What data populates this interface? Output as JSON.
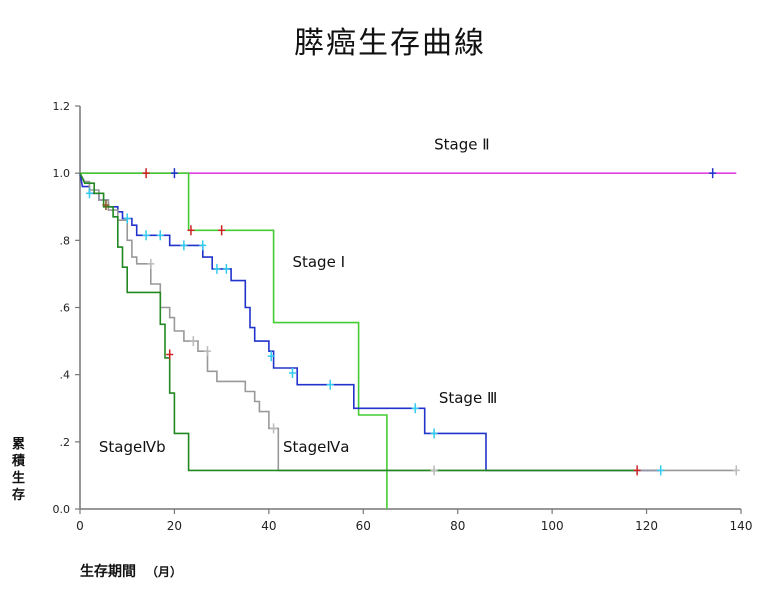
{
  "chart_data": {
    "type": "line",
    "title": "膵癌生存曲線",
    "xlabel": "生存期間",
    "xlabel_unit": "（月）",
    "ylabel": "累積生存",
    "xlim": [
      0,
      140
    ],
    "ylim": [
      0.0,
      1.2
    ],
    "x_ticks": [
      0,
      20,
      40,
      60,
      80,
      100,
      120,
      140
    ],
    "y_ticks": [
      {
        "value": 0.0,
        "label": "0.0"
      },
      {
        "value": 0.2,
        "label": ".2"
      },
      {
        "value": 0.4,
        "label": ".4"
      },
      {
        "value": 0.6,
        "label": ".6"
      },
      {
        "value": 0.8,
        "label": ".8"
      },
      {
        "value": 1.0,
        "label": "1.0"
      },
      {
        "value": 1.2,
        "label": "1.2"
      }
    ],
    "grid": false,
    "series": [
      {
        "name": "Stage Ⅱ",
        "color": "#e040e0",
        "steps": [
          [
            0,
            1.0
          ],
          [
            139,
            1.0
          ]
        ],
        "censored": [
          {
            "x": 134,
            "y": 1.0,
            "color": "#2233cc"
          }
        ]
      },
      {
        "name": "Stage Ⅰ",
        "color": "#44cc33",
        "steps": [
          [
            0,
            1.0
          ],
          [
            23,
            1.0
          ],
          [
            23,
            0.83
          ],
          [
            41,
            0.83
          ],
          [
            41,
            0.555
          ],
          [
            59,
            0.555
          ],
          [
            59,
            0.28
          ],
          [
            65,
            0.28
          ],
          [
            65,
            0.0
          ]
        ],
        "censored": [
          {
            "x": 14,
            "y": 1.0,
            "color": "#cc2222"
          },
          {
            "x": 20,
            "y": 1.0,
            "color": "#2233cc"
          },
          {
            "x": 23.5,
            "y": 0.83,
            "color": "#cc2222"
          },
          {
            "x": 30,
            "y": 0.83,
            "color": "#cc2222"
          }
        ]
      },
      {
        "name": "Stage Ⅲ",
        "color": "#2233cc",
        "steps": [
          [
            0,
            1.0
          ],
          [
            0.5,
            0.96
          ],
          [
            2,
            0.96
          ],
          [
            2,
            0.94
          ],
          [
            4,
            0.94
          ],
          [
            4,
            0.92
          ],
          [
            6,
            0.92
          ],
          [
            6,
            0.9
          ],
          [
            8,
            0.9
          ],
          [
            8,
            0.885
          ],
          [
            9,
            0.885
          ],
          [
            9,
            0.865
          ],
          [
            11,
            0.865
          ],
          [
            11,
            0.845
          ],
          [
            12,
            0.845
          ],
          [
            12,
            0.815
          ],
          [
            19,
            0.815
          ],
          [
            19,
            0.785
          ],
          [
            26,
            0.785
          ],
          [
            26,
            0.75
          ],
          [
            28,
            0.75
          ],
          [
            28,
            0.715
          ],
          [
            32,
            0.715
          ],
          [
            32,
            0.68
          ],
          [
            35,
            0.68
          ],
          [
            35,
            0.6
          ],
          [
            36,
            0.6
          ],
          [
            36,
            0.54
          ],
          [
            37,
            0.54
          ],
          [
            37,
            0.5
          ],
          [
            40,
            0.5
          ],
          [
            40,
            0.47
          ],
          [
            41,
            0.47
          ],
          [
            41,
            0.42
          ],
          [
            46,
            0.42
          ],
          [
            46,
            0.37
          ],
          [
            58,
            0.37
          ],
          [
            58,
            0.3
          ],
          [
            73,
            0.3
          ],
          [
            73,
            0.225
          ],
          [
            86,
            0.225
          ],
          [
            86,
            0.115
          ],
          [
            123,
            0.115
          ]
        ],
        "censored": [
          {
            "x": 2,
            "y": 0.94,
            "color": "#33ccee"
          },
          {
            "x": 10,
            "y": 0.865,
            "color": "#33ccee"
          },
          {
            "x": 14,
            "y": 0.815,
            "color": "#33ccee"
          },
          {
            "x": 17,
            "y": 0.815,
            "color": "#33ccee"
          },
          {
            "x": 22,
            "y": 0.785,
            "color": "#33ccee"
          },
          {
            "x": 26,
            "y": 0.785,
            "color": "#33ccee"
          },
          {
            "x": 29,
            "y": 0.715,
            "color": "#33ccee"
          },
          {
            "x": 31,
            "y": 0.715,
            "color": "#33ccee"
          },
          {
            "x": 40.5,
            "y": 0.455,
            "color": "#33ccee"
          },
          {
            "x": 45,
            "y": 0.405,
            "color": "#33ccee"
          },
          {
            "x": 53,
            "y": 0.37,
            "color": "#33ccee"
          },
          {
            "x": 71,
            "y": 0.3,
            "color": "#33ccee"
          },
          {
            "x": 75,
            "y": 0.225,
            "color": "#33ccee"
          },
          {
            "x": 123,
            "y": 0.115,
            "color": "#33ccee"
          }
        ]
      },
      {
        "name": "StageⅣa",
        "color": "#999999",
        "steps": [
          [
            0,
            1.0
          ],
          [
            1,
            0.975
          ],
          [
            2,
            0.975
          ],
          [
            2,
            0.95
          ],
          [
            4,
            0.95
          ],
          [
            4,
            0.92
          ],
          [
            6,
            0.92
          ],
          [
            6,
            0.89
          ],
          [
            8,
            0.89
          ],
          [
            8,
            0.86
          ],
          [
            10,
            0.86
          ],
          [
            10,
            0.8
          ],
          [
            11,
            0.8
          ],
          [
            11,
            0.75
          ],
          [
            12,
            0.75
          ],
          [
            12,
            0.73
          ],
          [
            15,
            0.73
          ],
          [
            15,
            0.67
          ],
          [
            17,
            0.67
          ],
          [
            17,
            0.6
          ],
          [
            19,
            0.6
          ],
          [
            19,
            0.57
          ],
          [
            20,
            0.57
          ],
          [
            20,
            0.53
          ],
          [
            22,
            0.53
          ],
          [
            22,
            0.5
          ],
          [
            25,
            0.5
          ],
          [
            25,
            0.47
          ],
          [
            27,
            0.47
          ],
          [
            27,
            0.41
          ],
          [
            29,
            0.41
          ],
          [
            29,
            0.38
          ],
          [
            35,
            0.38
          ],
          [
            35,
            0.35
          ],
          [
            37,
            0.35
          ],
          [
            37,
            0.32
          ],
          [
            38,
            0.32
          ],
          [
            38,
            0.29
          ],
          [
            40,
            0.29
          ],
          [
            40,
            0.24
          ],
          [
            42,
            0.24
          ],
          [
            42,
            0.115
          ],
          [
            139,
            0.115
          ]
        ],
        "censored": [
          {
            "x": 15,
            "y": 0.73,
            "color": "#bbbbbb"
          },
          {
            "x": 24,
            "y": 0.5,
            "color": "#bbbbbb"
          },
          {
            "x": 27,
            "y": 0.47,
            "color": "#bbbbbb"
          },
          {
            "x": 41,
            "y": 0.24,
            "color": "#bbbbbb"
          },
          {
            "x": 75,
            "y": 0.115,
            "color": "#bbbbbb"
          },
          {
            "x": 139,
            "y": 0.115,
            "color": "#bbbbbb"
          }
        ]
      },
      {
        "name": "StageⅣb",
        "color": "#228822",
        "steps": [
          [
            0,
            1.0
          ],
          [
            1,
            0.97
          ],
          [
            3,
            0.97
          ],
          [
            3,
            0.94
          ],
          [
            5,
            0.94
          ],
          [
            5,
            0.9
          ],
          [
            7,
            0.9
          ],
          [
            7,
            0.87
          ],
          [
            8,
            0.87
          ],
          [
            8,
            0.78
          ],
          [
            9,
            0.78
          ],
          [
            9,
            0.72
          ],
          [
            10,
            0.72
          ],
          [
            10,
            0.645
          ],
          [
            17,
            0.645
          ],
          [
            17,
            0.55
          ],
          [
            18,
            0.55
          ],
          [
            18,
            0.45
          ],
          [
            19,
            0.45
          ],
          [
            19,
            0.345
          ],
          [
            20,
            0.345
          ],
          [
            20,
            0.225
          ],
          [
            23,
            0.225
          ],
          [
            23,
            0.115
          ],
          [
            118,
            0.115
          ]
        ],
        "censored": [
          {
            "x": 5.5,
            "y": 0.905,
            "color": "#885522"
          },
          {
            "x": 19,
            "y": 0.46,
            "color": "#cc2222"
          },
          {
            "x": 118,
            "y": 0.115,
            "color": "#cc2222"
          }
        ]
      }
    ],
    "annotations": [
      {
        "text": "Stage Ⅱ",
        "x": 75,
        "y": 1.07
      },
      {
        "text": "Stage Ⅰ",
        "x": 45,
        "y": 0.72
      },
      {
        "text": "Stage Ⅲ",
        "x": 76,
        "y": 0.315
      },
      {
        "text": "StageⅣa",
        "x": 43,
        "y": 0.17
      },
      {
        "text": "StageⅣb",
        "x": 4,
        "y": 0.17
      }
    ]
  }
}
